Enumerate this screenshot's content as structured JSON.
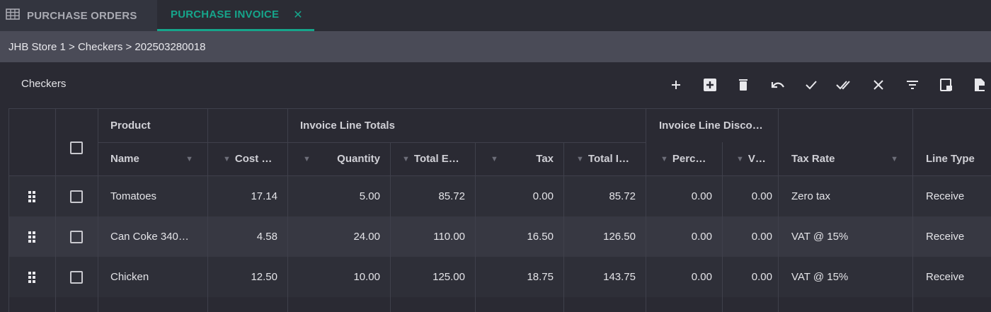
{
  "tabs": [
    {
      "label": "PURCHASE ORDERS",
      "icon": "grid-table-icon"
    },
    {
      "label": "PURCHASE INVOICE",
      "close": "✕"
    }
  ],
  "breadcrumb": "JHB Store 1 > Checkers > 202503280018",
  "panel": {
    "title": "Checkers",
    "toolbar": [
      "add-icon",
      "add-box-icon",
      "delete-icon",
      "undo-icon",
      "check-icon",
      "double-check-icon",
      "close-icon",
      "filter-icon",
      "export-icon",
      "document-icon"
    ]
  },
  "table": {
    "groups": {
      "product": "Product",
      "totals": "Invoice Line Totals",
      "discount": "Invoice Line Disco…"
    },
    "columns": {
      "name": "Name",
      "cost": "Cost …",
      "quantity": "Quantity",
      "total_excl": "Total E…",
      "tax": "Tax",
      "total_incl": "Total I…",
      "percent": "Perc…",
      "value": "V…",
      "tax_rate": "Tax Rate",
      "line_type": "Line Type"
    },
    "rows": [
      {
        "name": "Tomatoes",
        "cost": "17.14",
        "quantity": "5.00",
        "total_excl": "85.72",
        "tax": "0.00",
        "total_incl": "85.72",
        "percent": "0.00",
        "value": "0.00",
        "tax_rate": "Zero tax",
        "line_type": "Receive"
      },
      {
        "name": "Can Coke 340…",
        "cost": "4.58",
        "quantity": "24.00",
        "total_excl": "110.00",
        "tax": "16.50",
        "total_incl": "126.50",
        "percent": "0.00",
        "value": "0.00",
        "tax_rate": "VAT @ 15%",
        "line_type": "Receive"
      },
      {
        "name": "Chicken",
        "cost": "12.50",
        "quantity": "10.00",
        "total_excl": "125.00",
        "tax": "18.75",
        "total_incl": "143.75",
        "percent": "0.00",
        "value": "0.00",
        "tax_rate": "VAT @ 15%",
        "line_type": "Receive"
      }
    ]
  },
  "colors": {
    "accent": "#16a58b",
    "background": "#2a2a33",
    "breadcrumb_bg": "#4a4b57"
  }
}
